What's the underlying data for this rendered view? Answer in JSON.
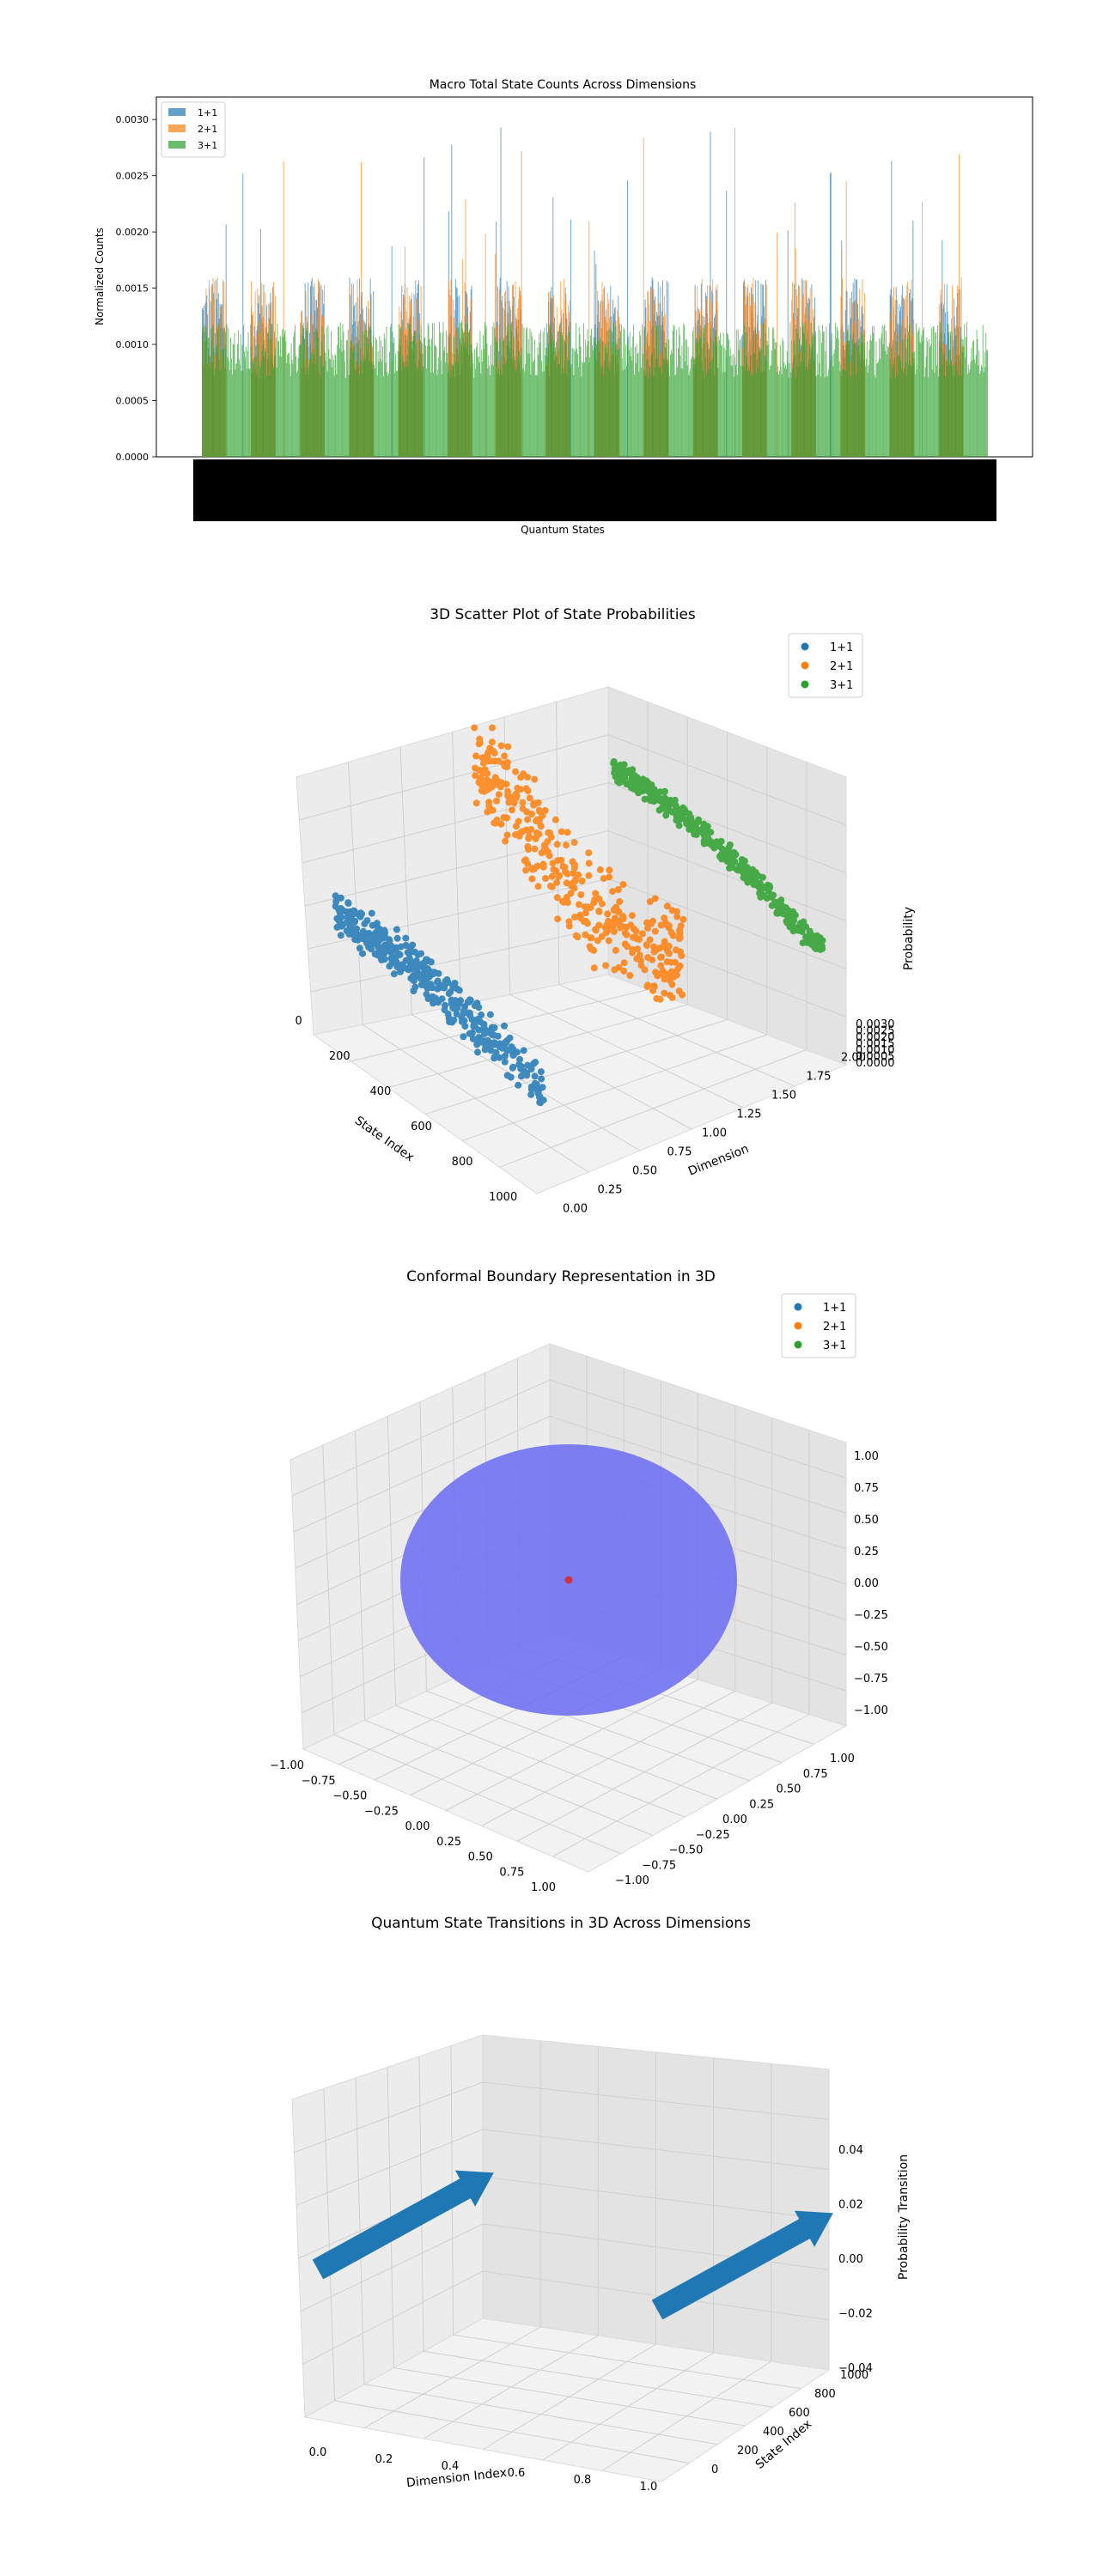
{
  "chart_data": [
    {
      "type": "bar",
      "title": "Macro Total State Counts Across Dimensions",
      "xlabel": "Quantum States",
      "ylabel": "Normalized Counts",
      "ylim": [
        0,
        0.0032
      ],
      "yticks": [
        "0.0000",
        "0.0005",
        "0.0010",
        "0.0015",
        "0.0020",
        "0.0025",
        "0.0030"
      ],
      "legend_position": "upper-left",
      "n_states": 1024,
      "series": [
        {
          "name": "1+1",
          "color": "#1f77b4",
          "typical_range": [
            0.0008,
            0.0016
          ],
          "max": 0.00298
        },
        {
          "name": "2+1",
          "color": "#ff7f0e",
          "typical_range": [
            0.0008,
            0.0016
          ],
          "max": 0.00298
        },
        {
          "name": "3+1",
          "color": "#2ca02c",
          "typical_range": [
            0.0007,
            0.0012
          ],
          "max": 0.0013
        }
      ]
    },
    {
      "type": "scatter",
      "title": "3D Scatter Plot of State Probabilities",
      "xlabel": "State Index",
      "ylabel": "Dimension",
      "zlabel": "Probability",
      "xticks": [
        "0",
        "200",
        "400",
        "600",
        "800",
        "1000"
      ],
      "yticks": [
        "0.00",
        "0.25",
        "0.50",
        "0.75",
        "1.00",
        "1.25",
        "1.50",
        "1.75",
        "2.00"
      ],
      "zticks": [
        "0.0000",
        "0.0005",
        "0.0010",
        "0.0015",
        "0.0020",
        "0.0025",
        "0.0030"
      ],
      "legend_position": "upper-right",
      "series": [
        {
          "name": "1+1",
          "color": "#1f77b4",
          "dimension": 0,
          "x_range": [
            0,
            1024
          ],
          "z_range": [
            0.0005,
            0.0017
          ]
        },
        {
          "name": "2+1",
          "color": "#ff7f0e",
          "dimension": 1,
          "x_range": [
            0,
            1024
          ],
          "z_range": [
            0.0005,
            0.003
          ]
        },
        {
          "name": "3+1",
          "color": "#2ca02c",
          "dimension": 2,
          "x_range": [
            0,
            1024
          ],
          "z_range": [
            0.0007,
            0.0013
          ]
        }
      ]
    },
    {
      "type": "scatter",
      "title": "Conformal Boundary Representation in 3D",
      "xticks": [
        "−1.00",
        "−0.75",
        "−0.50",
        "−0.25",
        "0.00",
        "0.25",
        "0.50",
        "0.75",
        "1.00"
      ],
      "yticks": [
        "−1.00",
        "−0.75",
        "−0.50",
        "−0.25",
        "0.00",
        "0.25",
        "0.50",
        "0.75",
        "1.00"
      ],
      "zticks": [
        "−1.00",
        "−0.75",
        "−0.50",
        "−0.25",
        "0.00",
        "0.25",
        "0.50",
        "0.75",
        "1.00"
      ],
      "legend_position": "upper-right",
      "legend": [
        {
          "name": "1+1",
          "color": "#1f77b4"
        },
        {
          "name": "2+1",
          "color": "#ff7f0e"
        },
        {
          "name": "3+1",
          "color": "#2ca02c"
        }
      ],
      "sphere": {
        "radius": 1.0,
        "color": "#6b6bf5"
      },
      "center_point": {
        "x": 0,
        "y": 0,
        "z": 0,
        "color": "#d62728"
      }
    },
    {
      "type": "line",
      "title": "Quantum State Transitions in 3D Across Dimensions",
      "xlabel": "Dimension Index",
      "ylabel": "State Index",
      "zlabel": "Probability Transition",
      "xticks": [
        "0.0",
        "0.2",
        "0.4",
        "0.6",
        "0.8",
        "1.0"
      ],
      "yticks": [
        "0",
        "200",
        "400",
        "600",
        "800",
        "1000"
      ],
      "zticks": [
        "−0.04",
        "−0.02",
        "0.00",
        "0.02",
        "0.04"
      ],
      "arrows": [
        {
          "dimension_from": 0,
          "dimension_to": 0,
          "state_from": 0,
          "state_to": 1024,
          "z": 0.0,
          "color": "#1f77b4"
        },
        {
          "dimension_from": 1,
          "dimension_to": 1,
          "state_from": 0,
          "state_to": 1024,
          "z": 0.0,
          "color": "#1f77b4"
        }
      ]
    }
  ]
}
